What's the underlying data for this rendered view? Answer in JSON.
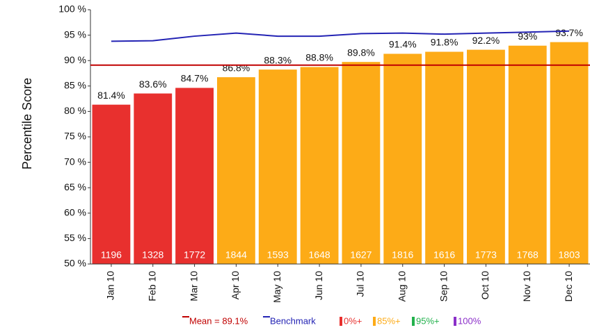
{
  "chart_data": {
    "type": "bar",
    "y_axis_label": "Percentile Score",
    "categories": [
      "Jan 10",
      "Feb 10",
      "Mar 10",
      "Apr 10",
      "May 10",
      "Jun 10",
      "Jul 10",
      "Aug 10",
      "Sep 10",
      "Oct 10",
      "Nov 10",
      "Dec 10"
    ],
    "values": [
      81.4,
      83.6,
      84.7,
      86.8,
      88.3,
      88.8,
      89.8,
      91.4,
      91.8,
      92.2,
      93,
      93.7
    ],
    "value_labels": [
      "81.4%",
      "83.6%",
      "84.7%",
      "86.8%",
      "88.3%",
      "88.8%",
      "89.8%",
      "91.4%",
      "91.8%",
      "92.2%",
      "93%",
      "93.7%"
    ],
    "colors": [
      "#e8302e",
      "#e8302e",
      "#e8302e",
      "#fdab17",
      "#fdab17",
      "#fdab17",
      "#fdab17",
      "#fdab17",
      "#fdab17",
      "#fdab17",
      "#fdab17",
      "#fdab17"
    ],
    "counts": [
      "1196",
      "1328",
      "1772",
      "1844",
      "1593",
      "1648",
      "1627",
      "1816",
      "1616",
      "1773",
      "1768",
      "1803"
    ],
    "benchmark": {
      "name": "Benchmark",
      "color": "#2323b4",
      "values": [
        93.8,
        93.9,
        94.8,
        95.4,
        94.8,
        94.8,
        95.3,
        95.4,
        95.2,
        95.4,
        95.6,
        95.8
      ]
    },
    "mean": 89.1,
    "mean_label": "Mean = 89.1%",
    "mean_color": "#c00000",
    "legend": [
      {
        "label": "0%+",
        "color": "#e8302e"
      },
      {
        "label": "85%+",
        "color": "#fdab17"
      },
      {
        "label": "95%+",
        "color": "#22b14c"
      },
      {
        "label": "100%",
        "color": "#8b2fc9"
      }
    ],
    "ylim": [
      50,
      100
    ],
    "yticks": [
      {
        "value": 50,
        "label": "50 %"
      },
      {
        "value": 55,
        "label": "55 %"
      },
      {
        "value": 60,
        "label": "60 %"
      },
      {
        "value": 65,
        "label": "65 %"
      },
      {
        "value": 70,
        "label": "70 %"
      },
      {
        "value": 75,
        "label": "75 %"
      },
      {
        "value": 80,
        "label": "80 %"
      },
      {
        "value": 85,
        "label": "85 %"
      },
      {
        "value": 90,
        "label": "90 %"
      },
      {
        "value": 95,
        "label": "95 %"
      },
      {
        "value": 100,
        "label": "100 %"
      }
    ]
  }
}
